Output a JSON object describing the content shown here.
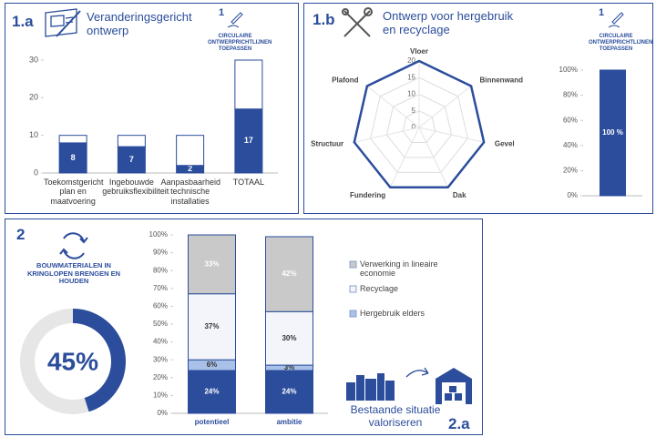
{
  "panel_1a": {
    "number": "1.a",
    "title": "Veranderingsgericht ontwerp",
    "badge": "1",
    "badge_text": "CIRCULAIRE ONTWERPRICHTLIJNEN TOEPASSEN"
  },
  "panel_1b": {
    "number": "1.b",
    "title": "Ontwerp voor hergebruik en recyclage",
    "badge": "1",
    "badge_text": "CIRCULAIRE ONTWERPRICHTLIJNEN TOEPASSEN"
  },
  "panel_2": {
    "number": "2",
    "title": "BOUWMATERIALEN IN KRINGLOPEN BRENGEN EN HOUDEN"
  },
  "panel_2a": {
    "number": "2.a",
    "title": "Bestaande situatie valoriseren"
  },
  "chart_data": [
    {
      "type": "bar",
      "stacked": true,
      "categories": [
        "Toekomstgericht plan en maatvoering",
        "Ingebouwde gebruiksflexibiliteit",
        "Aanpasbaarheid technische installaties",
        "TOTAAL"
      ],
      "series": [
        {
          "color": "#2b4d9c",
          "label_color": "#ffffff",
          "values": [
            8,
            7,
            2,
            17
          ]
        },
        {
          "color": "#ffffff",
          "values": [
            2,
            3,
            8,
            13
          ]
        }
      ],
      "bar_edge": "#2b4d9c",
      "ylim": [
        0,
        30
      ],
      "yticks": [
        0,
        10,
        20,
        30
      ]
    },
    {
      "type": "radar",
      "categories": [
        "Vloer",
        "Binnenwand",
        "Gevel",
        "Dak",
        "Fundering",
        "Structuur",
        "Plafond"
      ],
      "values": [
        20,
        20,
        20,
        20,
        20,
        20,
        20
      ],
      "color": "#2b4d9c",
      "ylim": [
        0,
        20
      ],
      "yticks": [
        0,
        5,
        10,
        15,
        20
      ],
      "grid": true
    },
    {
      "type": "bar",
      "categories": [
        null
      ],
      "series": [
        {
          "color": "#2b4d9c",
          "label_color": "#ffffff",
          "values": [
            100
          ],
          "value_labels": [
            "100 %"
          ]
        }
      ],
      "bar_edge": "#2b4d9c",
      "ylim": [
        0,
        100
      ],
      "yticks": [
        {
          "value": 0,
          "label": "0%"
        },
        {
          "value": 20,
          "label": "20%"
        },
        {
          "value": 40,
          "label": "40%"
        },
        {
          "value": 60,
          "label": "60%"
        },
        {
          "value": 80,
          "label": "80%"
        },
        {
          "value": 100,
          "label": "100%"
        }
      ]
    },
    {
      "type": "donut",
      "values": [
        45
      ],
      "value_labels": [
        "45%"
      ],
      "color": "#2b4d9c",
      "track_color": "#e6e6e6"
    },
    {
      "type": "bar",
      "stacked": true,
      "categories": [
        "potentieel",
        "ambitie"
      ],
      "series": [
        {
          "color": "#2b4d9c",
          "label_color": "#ffffff",
          "values": [
            24,
            24
          ],
          "value_labels": [
            "24%",
            "24%"
          ]
        },
        {
          "name": "Hergebruik elders",
          "color": "#a9c0e8",
          "label_color": "#333333",
          "values": [
            6,
            3
          ],
          "value_labels": [
            "6%",
            "3%"
          ]
        },
        {
          "name": "Recyclage",
          "color": "#f3f5fa",
          "label_color": "#333333",
          "values": [
            37,
            30
          ],
          "value_labels": [
            "37%",
            "30%"
          ]
        },
        {
          "name": "Verwerking in lineaire economie",
          "color": "#c9c9c9",
          "label_color": "#ffffff",
          "values": [
            33,
            42
          ],
          "value_labels": [
            "33%",
            "42%"
          ]
        }
      ],
      "bar_edge": "#2b4d9c",
      "ylim": [
        0,
        100
      ],
      "legend": "right",
      "yticks": [
        {
          "value": 0,
          "label": "0%"
        },
        {
          "value": 10,
          "label": "10%"
        },
        {
          "value": 20,
          "label": "20%"
        },
        {
          "value": 30,
          "label": "30%"
        },
        {
          "value": 40,
          "label": "40%"
        },
        {
          "value": 50,
          "label": "50%"
        },
        {
          "value": 60,
          "label": "60%"
        },
        {
          "value": 70,
          "label": "70%"
        },
        {
          "value": 80,
          "label": "80%"
        },
        {
          "value": 90,
          "label": "90%"
        },
        {
          "value": 100,
          "label": "100%"
        }
      ]
    }
  ]
}
